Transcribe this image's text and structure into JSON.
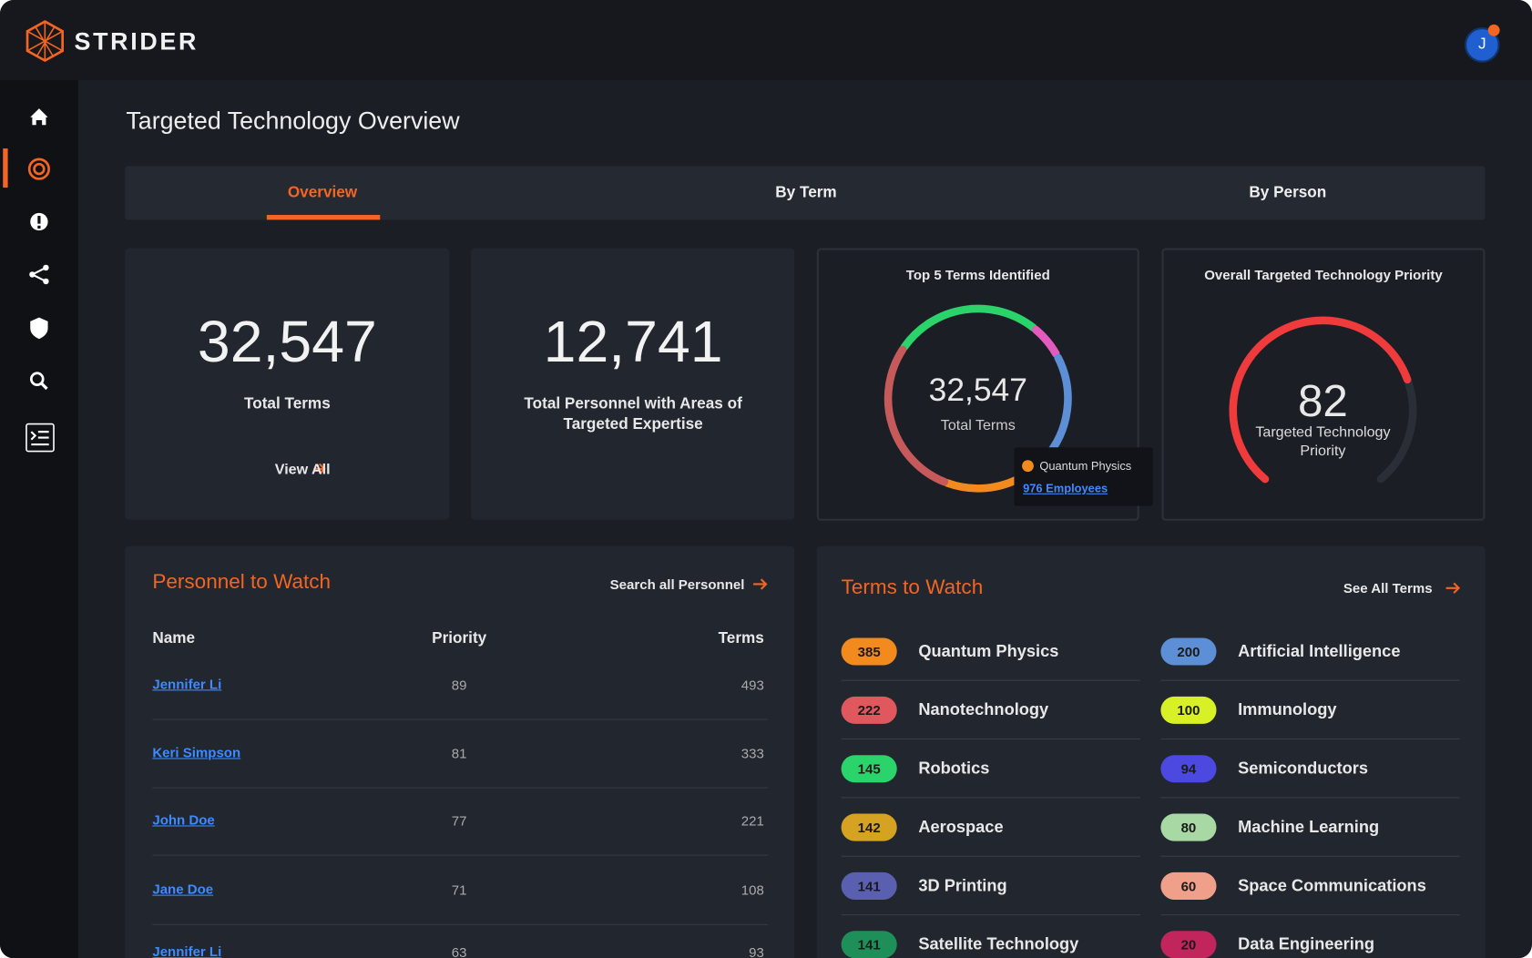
{
  "header": {
    "brand": "STRIDER",
    "avatar": "J"
  },
  "page": {
    "title": "Targeted Technology Overview"
  },
  "tabs": [
    "Overview",
    "By Term",
    "By Person"
  ],
  "stats": [
    {
      "value": "32,547",
      "label": "Total Terms",
      "link": "View All"
    },
    {
      "value": "12,741",
      "label": "Total Personnel with Areas of Targeted Expertise"
    }
  ],
  "top_terms": {
    "title": "Top 5 Terms Identified",
    "total": "32,547",
    "total_label": "Total Terms",
    "tooltip": {
      "term": "Quantum Physics",
      "link": "976 Employees"
    }
  },
  "priority": {
    "title": "Overall Targeted Technology Priority",
    "value": "82",
    "label": "Targeted Technology Priority"
  },
  "personnel": {
    "title": "Personnel to Watch",
    "link": "Search all Personnel",
    "columns": [
      "Name",
      "Priority",
      "Terms"
    ],
    "rows": [
      [
        "Jennifer Li",
        "89",
        "493"
      ],
      [
        "Keri Simpson",
        "81",
        "333"
      ],
      [
        "John Doe",
        "77",
        "221"
      ],
      [
        "Jane Doe",
        "71",
        "108"
      ],
      [
        "Jennifer Li",
        "63",
        "93"
      ]
    ]
  },
  "terms": {
    "title": "Terms to Watch",
    "link": "See All Terms",
    "items": [
      {
        "count": "385",
        "name": "Quantum Physics",
        "color": "#f28a1e"
      },
      {
        "count": "222",
        "name": "Nanotechnology",
        "color": "#e0575d"
      },
      {
        "count": "145",
        "name": "Robotics",
        "color": "#2bd46b"
      },
      {
        "count": "142",
        "name": "Aerospace",
        "color": "#d6a221"
      },
      {
        "count": "141",
        "name": "3D Printing",
        "color": "#5a5fb0"
      },
      {
        "count": "141",
        "name": "Satellite Technology",
        "color": "#1f8f5a"
      },
      {
        "count": "200",
        "name": "Artificial Intelligence",
        "color": "#5c8fd6"
      },
      {
        "count": "100",
        "name": "Immunology",
        "color": "#d8f026"
      },
      {
        "count": "94",
        "name": "Semiconductors",
        "color": "#4b49e0"
      },
      {
        "count": "80",
        "name": "Machine Learning",
        "color": "#a8d8a3"
      },
      {
        "count": "60",
        "name": "Space Communications",
        "color": "#f0a08a"
      },
      {
        "count": "20",
        "name": "Data Engineering",
        "color": "#c2245c"
      }
    ]
  }
}
